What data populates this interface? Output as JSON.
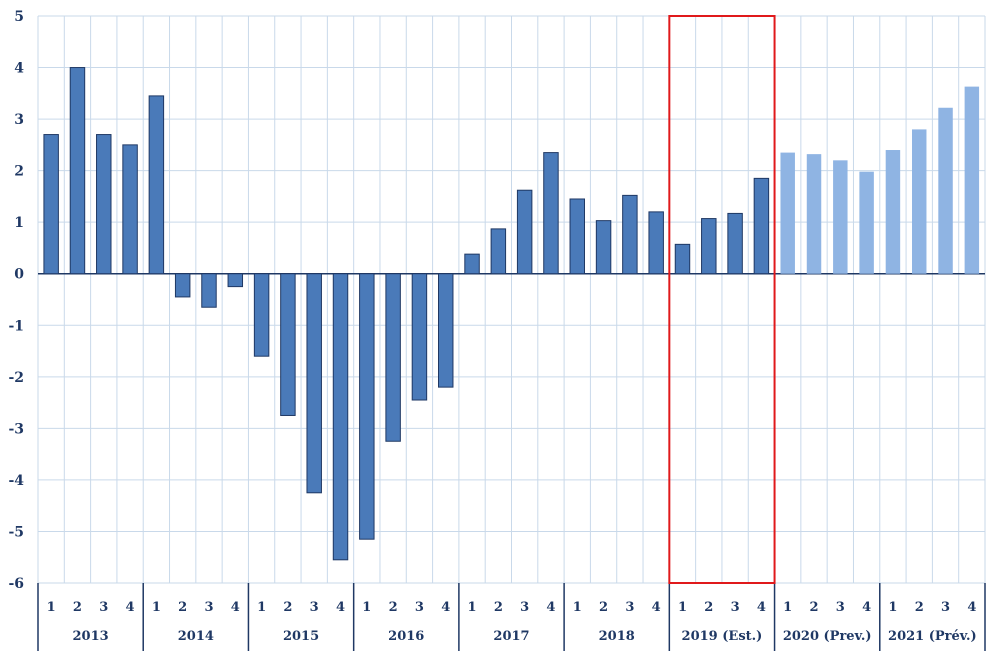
{
  "chart_data": {
    "type": "bar",
    "title": "",
    "xlabel": "",
    "ylabel": "",
    "ylim": [
      -6,
      5
    ],
    "yticks": [
      5,
      4,
      3,
      2,
      1,
      0,
      -1,
      -2,
      -3,
      -4,
      -5,
      -6
    ],
    "grid": true,
    "years": [
      "2013",
      "2014",
      "2015",
      "2016",
      "2017",
      "2018",
      "2019 (Est.)",
      "2020 (Prev.)",
      "2021 (Prév.)"
    ],
    "quarters": [
      "1",
      "2",
      "3",
      "4"
    ],
    "values": [
      2.7,
      4.0,
      2.7,
      2.5,
      3.45,
      -0.45,
      -0.65,
      -0.25,
      -1.6,
      -2.75,
      -4.25,
      -5.55,
      -5.15,
      -3.25,
      -2.45,
      -2.2,
      0.38,
      0.87,
      1.62,
      2.35,
      1.45,
      1.03,
      1.52,
      1.2,
      0.57,
      1.07,
      1.17,
      1.85,
      2.35,
      2.32,
      2.2,
      1.98,
      2.4,
      2.8,
      3.22,
      3.63
    ],
    "highlight_year": "2019 (Est.)",
    "colors": {
      "actual": "#4a7ab9",
      "actual_border": "#1f3864",
      "forecast": "#8fb4e3",
      "grid": "#c9d9ea",
      "axis": "#1f3864",
      "highlight": "#e0191b"
    }
  }
}
